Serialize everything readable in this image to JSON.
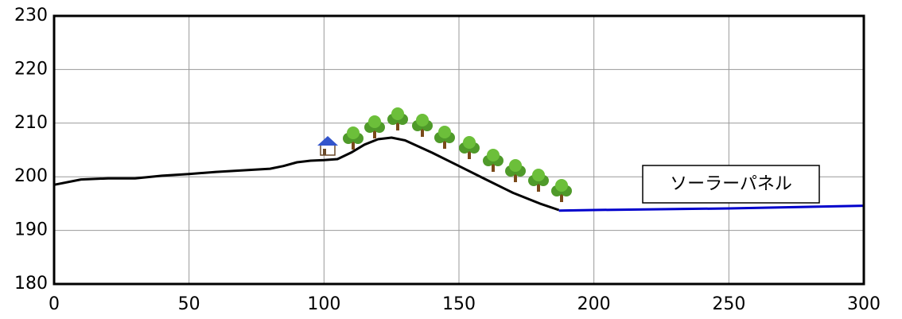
{
  "chart_data": {
    "type": "line",
    "annotation": "ソーラーパネル",
    "series": [
      {
        "color": "#000000",
        "x": [
          0,
          10,
          20,
          30,
          40,
          50,
          60,
          70,
          80,
          85,
          90,
          95,
          100,
          105,
          110,
          115,
          120,
          125,
          130,
          140,
          150,
          160,
          170,
          180,
          187
        ],
        "values": [
          198.5,
          199.5,
          199.7,
          199.7,
          200.2,
          200.5,
          200.9,
          201.2,
          201.5,
          202.0,
          202.7,
          203.0,
          203.1,
          203.3,
          204.5,
          206.0,
          207.0,
          207.3,
          206.8,
          204.5,
          202.0,
          199.5,
          197.0,
          195.0,
          193.8
        ]
      },
      {
        "color": "#0000cc",
        "x": [
          187,
          200,
          250,
          300
        ],
        "values": [
          193.7,
          193.8,
          194.1,
          194.6
        ]
      }
    ],
    "xlim": [
      0,
      300
    ],
    "xticks": [
      0,
      50,
      100,
      150,
      200,
      250,
      300
    ],
    "ylim": [
      180,
      230
    ],
    "yticks": [
      180,
      190,
      200,
      210,
      220,
      230
    ],
    "grid": true
  }
}
